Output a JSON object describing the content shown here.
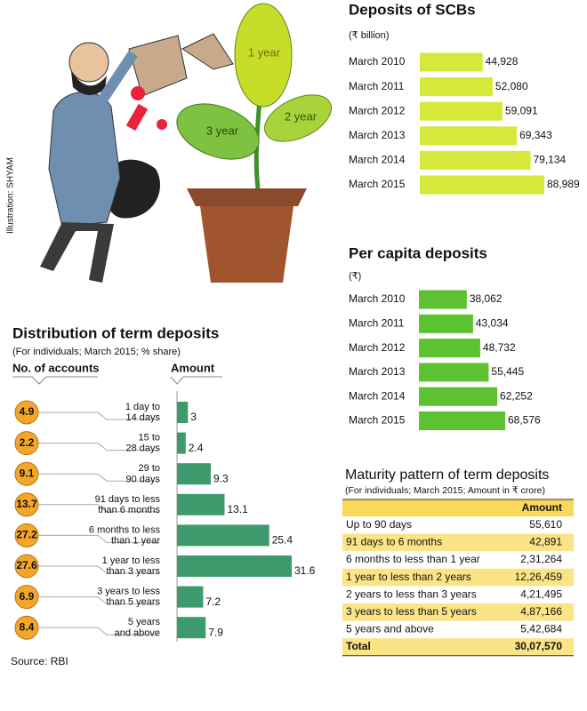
{
  "illustration": {
    "credit": "Illustration: SHYAM",
    "labels": [
      "1 year",
      "2 year",
      "3 year"
    ]
  },
  "chart_data": [
    {
      "type": "bar",
      "title": "Deposits of SCBs",
      "subtitle": "(₹ billion)",
      "categories": [
        "March 2010",
        "March 2011",
        "March 2012",
        "March 2013",
        "March 2014",
        "March 2015"
      ],
      "values": [
        44928,
        52080,
        59091,
        69343,
        79134,
        88989
      ],
      "value_labels": [
        "44,928",
        "52,080",
        "59,091",
        "69,343",
        "79,134",
        "88,989"
      ],
      "color": "#d6e83a"
    },
    {
      "type": "bar",
      "title": "Per capita deposits",
      "subtitle": "(₹)",
      "categories": [
        "March 2010",
        "March 2011",
        "March 2012",
        "March 2013",
        "March 2014",
        "March 2015"
      ],
      "values": [
        38062,
        43034,
        48732,
        55445,
        62252,
        68576
      ],
      "value_labels": [
        "38,062",
        "43,034",
        "48,732",
        "55,445",
        "62,252",
        "68,576"
      ],
      "color": "#5cc232"
    },
    {
      "type": "bar",
      "title": "Distribution of term deposits",
      "subtitle": "(For individuals; March 2015; % share)",
      "categories": [
        "1 day to\n14 days",
        "15 to\n28 days",
        "29 to\n90 days",
        "91 days to less\nthan 6 months",
        "6 months to less\nthan 1 year",
        "1 year to less\nthan 3 years",
        "3 years to less\nthan 5 years",
        "5 years\nand above"
      ],
      "series": [
        {
          "name": "No. of accounts",
          "color": "#f4a62a",
          "values": [
            4.9,
            2.2,
            9.1,
            13.7,
            27.2,
            27.6,
            6.9,
            8.4
          ]
        },
        {
          "name": "Amount",
          "color": "#3c9a6c",
          "values": [
            3,
            2.4,
            9.3,
            13.1,
            25.4,
            31.6,
            7.2,
            7.9
          ]
        }
      ]
    }
  ],
  "table": {
    "title": "Maturity pattern of term deposits",
    "subtitle": "(For individuals; March 2015; Amount in ₹ crore)",
    "amount_header": "Amount",
    "rows": [
      [
        "Up to 90 days",
        "55,610"
      ],
      [
        "91 days to 6 months",
        "42,891"
      ],
      [
        "6 months to less than 1 year",
        "2,31,264"
      ],
      [
        "1 year to less than 2 years",
        "12,26,459"
      ],
      [
        "2 years to less than 3 years",
        "4,21,495"
      ],
      [
        "3 years to less than 5 years",
        "4,87,166"
      ],
      [
        "5 years and above",
        "5,42,684"
      ]
    ],
    "total": [
      "Total",
      "30,07,570"
    ]
  },
  "source": "Source: RBI"
}
